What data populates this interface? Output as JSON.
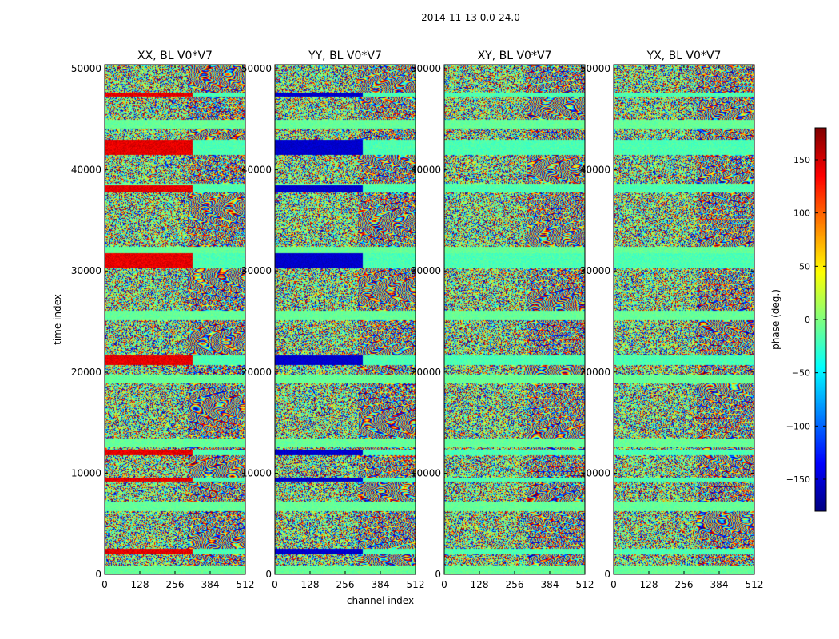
{
  "chart_data": {
    "type": "heatmap",
    "suptitle": "2014-11-13 0.0-24.0",
    "xlabel": "channel index",
    "ylabel": "time index",
    "xlim": [
      0,
      512
    ],
    "ylim": [
      0,
      50400
    ],
    "xticks": [
      0,
      128,
      256,
      384,
      512
    ],
    "yticks": [
      0,
      10000,
      20000,
      30000,
      40000,
      50000
    ],
    "panels": [
      {
        "title": "XX, BL V0*V7",
        "pol": "XX"
      },
      {
        "title": "YY, BL V0*V7",
        "pol": "YY"
      },
      {
        "title": "XY, BL V0*V7",
        "pol": "XY"
      },
      {
        "title": "YX, BL V0*V7",
        "pol": "YX"
      }
    ],
    "colorbar": {
      "label": "phase (deg.)",
      "range": [
        -180,
        180
      ],
      "ticks": [
        150,
        100,
        50,
        0,
        -50,
        -100,
        -150
      ],
      "tick_labels": [
        "150",
        "100",
        "50",
        "0",
        "−50",
        "−100",
        "−150"
      ],
      "colormap": "jet"
    },
    "flagged_bands_time": [
      [
        2000,
        2600
      ],
      [
        9200,
        9600
      ],
      [
        11800,
        12400
      ],
      [
        20700,
        21700
      ],
      [
        30300,
        31800
      ],
      [
        37800,
        38500
      ],
      [
        41500,
        43000
      ],
      [
        47300,
        47700
      ]
    ]
  }
}
